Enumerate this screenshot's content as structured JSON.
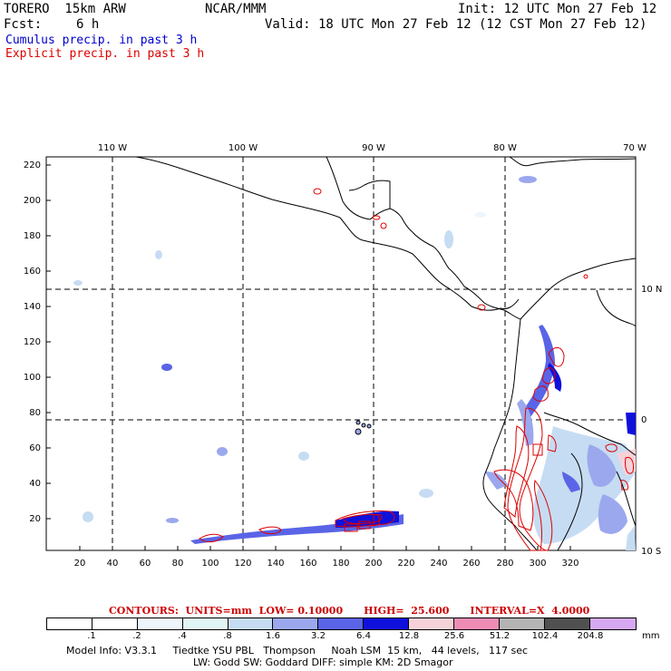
{
  "header": {
    "model": "TORERO  15km ARW",
    "org": "NCAR/MMM",
    "init": "Init: 12 UTC Mon 27 Feb 12",
    "fcst_label": "Fcst:",
    "fcst_value": "6 h",
    "valid": "Valid: 18 UTC Mon 27 Feb 12 (12 CST Mon 27 Feb 12)"
  },
  "legend": {
    "cumulus": "Cumulus precip. in past 3 h",
    "explicit": "Explicit precip. in past 3 h",
    "cumulus_color": "#0000cc",
    "explicit_color": "#dd0000"
  },
  "map": {
    "top_lon_labels": [
      "110 W",
      "100 W",
      "90 W",
      "80 W",
      "70 W"
    ],
    "right_lat_labels": [
      "10 N",
      "0",
      "10 S"
    ],
    "left_y_ticks": [
      "220",
      "200",
      "180",
      "160",
      "140",
      "120",
      "100",
      "80",
      "60",
      "40",
      "20"
    ],
    "bottom_x_ticks": [
      "20",
      "40",
      "60",
      "80",
      "100",
      "120",
      "140",
      "160",
      "180",
      "200",
      "220",
      "240",
      "260",
      "280",
      "300",
      "320"
    ]
  },
  "contours": {
    "text": "CONTOURS:  UNITS=mm  LOW= 0.10000      HIGH=  25.600      INTERVAL=X  4.0000"
  },
  "colorbar": {
    "colors": [
      "#ffffff",
      "#ffffff",
      "#eef6fb",
      "#e0f6f6",
      "#c6dcf2",
      "#9ba8ee",
      "#5a64e6",
      "#1010dd",
      "#f6d2d8",
      "#ee8cb4",
      "#b4b4b4",
      "#505050",
      "#d6a8f2"
    ],
    "labels": [
      ".1",
      ".2",
      ".4",
      ".8",
      "1.6",
      "3.2",
      "6.4",
      "12.8",
      "25.6",
      "51.2",
      "102.4",
      "204.8"
    ],
    "unit": "mm"
  },
  "footer": {
    "line1": "Model Info: V3.3.1     Tiedtke YSU PBL   Thompson     Noah LSM  15 km,   44 levels,   117 sec",
    "line2": "LW: Godd SW: Goddard DIFF: simple KM: 2D Smagor"
  }
}
